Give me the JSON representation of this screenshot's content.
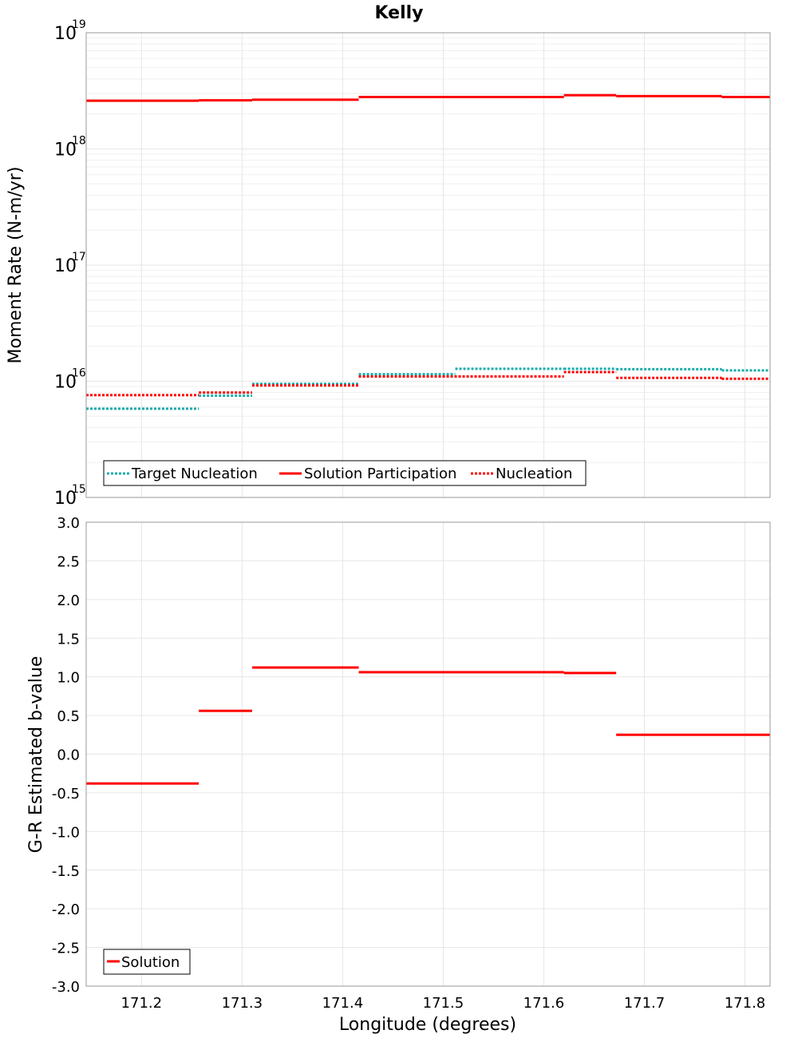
{
  "chart_data": [
    {
      "type": "line",
      "title": "Kelly",
      "ylabel": "Moment Rate (N-m/yr)",
      "xlabel": "",
      "yscale": "log",
      "ylim": [
        1000000000000000.0,
        1e+19
      ],
      "xlim": [
        171.145,
        171.825
      ],
      "y_tick_labels": [
        {
          "base": "10",
          "exp": "15"
        },
        {
          "base": "10",
          "exp": "16"
        },
        {
          "base": "10",
          "exp": "17"
        },
        {
          "base": "10",
          "exp": "18"
        },
        {
          "base": "10",
          "exp": "19"
        }
      ],
      "y_tick_values": [
        1000000000000000.0,
        1e+16,
        1e+17,
        1e+18,
        1e+19
      ],
      "legend_position": "bottom-left",
      "series": [
        {
          "name": "Target Nucleation",
          "color": "#1aacac",
          "style": "dotted",
          "steps": [
            {
              "x0": 171.145,
              "x1": 171.257,
              "y": 5800000000000000.0
            },
            {
              "x0": 171.257,
              "x1": 171.31,
              "y": 7500000000000000.0
            },
            {
              "x0": 171.31,
              "x1": 171.416,
              "y": 9500000000000000.0
            },
            {
              "x0": 171.416,
              "x1": 171.512,
              "y": 1.15e+16
            },
            {
              "x0": 171.512,
              "x1": 171.62,
              "y": 1.28e+16
            },
            {
              "x0": 171.62,
              "x1": 171.672,
              "y": 1.28e+16
            },
            {
              "x0": 171.672,
              "x1": 171.777,
              "y": 1.27e+16
            },
            {
              "x0": 171.777,
              "x1": 171.825,
              "y": 1.24e+16
            }
          ]
        },
        {
          "name": "Solution Participation",
          "color": "#ff0000",
          "style": "solid",
          "steps": [
            {
              "x0": 171.145,
              "x1": 171.257,
              "y": 2.6e+18
            },
            {
              "x0": 171.257,
              "x1": 171.31,
              "y": 2.62e+18
            },
            {
              "x0": 171.31,
              "x1": 171.416,
              "y": 2.65e+18
            },
            {
              "x0": 171.416,
              "x1": 171.62,
              "y": 2.8e+18
            },
            {
              "x0": 171.62,
              "x1": 171.672,
              "y": 2.9e+18
            },
            {
              "x0": 171.672,
              "x1": 171.777,
              "y": 2.85e+18
            },
            {
              "x0": 171.777,
              "x1": 171.825,
              "y": 2.8e+18
            }
          ]
        },
        {
          "name": "Nucleation",
          "color": "#ff0000",
          "style": "dotted",
          "steps": [
            {
              "x0": 171.145,
              "x1": 171.257,
              "y": 7600000000000000.0
            },
            {
              "x0": 171.257,
              "x1": 171.31,
              "y": 8000000000000000.0
            },
            {
              "x0": 171.31,
              "x1": 171.416,
              "y": 9200000000000000.0
            },
            {
              "x0": 171.416,
              "x1": 171.62,
              "y": 1.1e+16
            },
            {
              "x0": 171.62,
              "x1": 171.672,
              "y": 1.2e+16
            },
            {
              "x0": 171.672,
              "x1": 171.777,
              "y": 1.07e+16
            },
            {
              "x0": 171.777,
              "x1": 171.825,
              "y": 1.05e+16
            }
          ]
        }
      ]
    },
    {
      "type": "line",
      "title": "",
      "ylabel": "G-R Estimated b-value",
      "xlabel": "Longitude (degrees)",
      "yscale": "linear",
      "ylim": [
        -3.0,
        3.0
      ],
      "xlim": [
        171.145,
        171.825
      ],
      "y_ticks": [
        "3.0",
        "2.5",
        "2.0",
        "1.5",
        "1.0",
        "0.5",
        "0.0",
        "-0.5",
        "-1.0",
        "-1.5",
        "-2.0",
        "-2.5",
        "-3.0"
      ],
      "y_tick_values": [
        3.0,
        2.5,
        2.0,
        1.5,
        1.0,
        0.5,
        0.0,
        -0.5,
        -1.0,
        -1.5,
        -2.0,
        -2.5,
        -3.0
      ],
      "x_ticks": [
        "171.2",
        "171.3",
        "171.4",
        "171.5",
        "171.6",
        "171.7",
        "171.8"
      ],
      "x_tick_values": [
        171.2,
        171.3,
        171.4,
        171.5,
        171.6,
        171.7,
        171.8
      ],
      "legend_position": "bottom-left",
      "series": [
        {
          "name": "Solution",
          "color": "#ff0000",
          "style": "solid",
          "steps": [
            {
              "x0": 171.145,
              "x1": 171.257,
              "y": -0.38
            },
            {
              "x0": 171.257,
              "x1": 171.31,
              "y": 0.56
            },
            {
              "x0": 171.31,
              "x1": 171.416,
              "y": 1.12
            },
            {
              "x0": 171.416,
              "x1": 171.62,
              "y": 1.06
            },
            {
              "x0": 171.62,
              "x1": 171.672,
              "y": 1.05
            },
            {
              "x0": 171.672,
              "x1": 171.825,
              "y": 0.25
            }
          ]
        }
      ]
    }
  ]
}
